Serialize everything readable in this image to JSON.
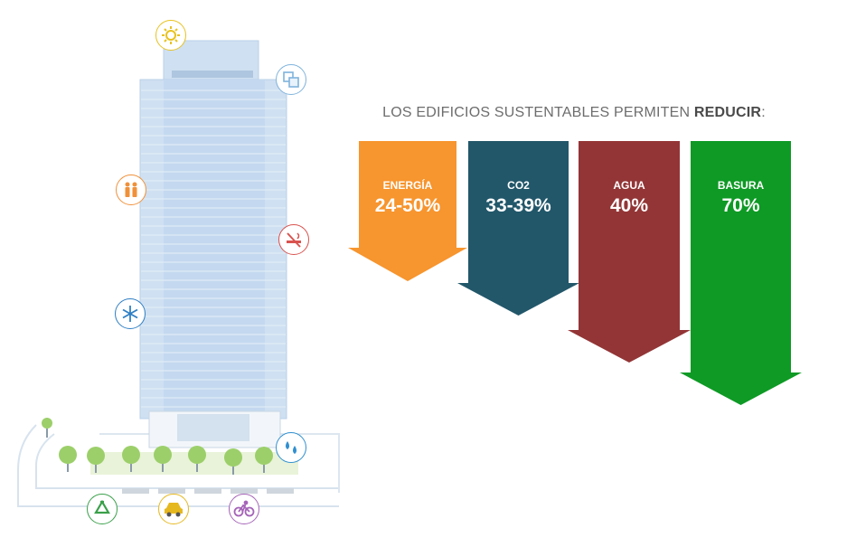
{
  "headline": {
    "prefix": "LOS EDIFICIOS SUSTENTABLES PERMITEN ",
    "emphasis": "REDUCIR",
    "suffix": ":"
  },
  "arrows": [
    {
      "label": "ENERGÍA",
      "value": "24-50%",
      "color": "#f7952e"
    },
    {
      "label": "CO2",
      "value": "33-39%",
      "color": "#22576a"
    },
    {
      "label": "AGUA",
      "value": "40%",
      "color": "#933536"
    },
    {
      "label": "BASURA",
      "value": "70%",
      "color": "#0e9a25"
    }
  ],
  "icons": [
    {
      "name": "sun-icon",
      "color": "#e8c21f"
    },
    {
      "name": "windows-icon",
      "color": "#7fb3dc"
    },
    {
      "name": "people-icon",
      "color": "#f0913a"
    },
    {
      "name": "no-smoking-icon",
      "color": "#d9534f"
    },
    {
      "name": "snowflake-icon",
      "color": "#2f7fc4"
    },
    {
      "name": "water-drop-icon",
      "color": "#2f8fd0"
    },
    {
      "name": "recycle-icon",
      "color": "#3aa04a"
    },
    {
      "name": "car-icon",
      "color": "#e6b820"
    },
    {
      "name": "bicycle-icon",
      "color": "#a564b8"
    }
  ]
}
